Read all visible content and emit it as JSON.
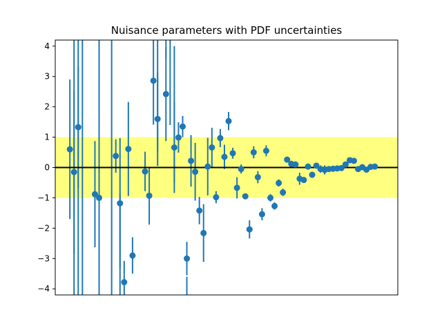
{
  "chart_data": {
    "type": "scatter",
    "title": "Nuisance parameters with PDF uncertainties",
    "xlabel": "",
    "ylabel": "",
    "xlim": [
      -0.5,
      81.5
    ],
    "ylim": [
      -4.2,
      4.2
    ],
    "yticks": [
      -4,
      -3,
      -2,
      -1,
      0,
      1,
      2,
      3,
      4
    ],
    "show_xticks": false,
    "grid": false,
    "legend": "none",
    "band": {
      "from": -1,
      "to": 1,
      "color": "#ffff80"
    },
    "reference_line": {
      "y": 0,
      "color": "#000000"
    },
    "marker_color": "#1f77b4",
    "series": [
      {
        "x": [
          0,
          1,
          2,
          3,
          4,
          5,
          6,
          7,
          8,
          9,
          10,
          11,
          12,
          13,
          14,
          15,
          16,
          17,
          18,
          19,
          20,
          21,
          22,
          23,
          24,
          25,
          26,
          27,
          28,
          29,
          30,
          31,
          32,
          33,
          34,
          35,
          36,
          37,
          38,
          39,
          40,
          41,
          42,
          43,
          44,
          45,
          46,
          47,
          48,
          49,
          50,
          51,
          52,
          53,
          54,
          55,
          56,
          57,
          58,
          59,
          60,
          61,
          62,
          63,
          64,
          65,
          66,
          67,
          68,
          69,
          70,
          71,
          72,
          73,
          74,
          75,
          76,
          77,
          78,
          79,
          80,
          81
        ],
        "y": [
          null,
          null,
          null,
          0.6,
          -0.15,
          1.33,
          null,
          null,
          null,
          -0.88,
          -1.0,
          null,
          null,
          null,
          0.38,
          -1.18,
          -3.78,
          0.61,
          -2.9,
          null,
          null,
          -0.13,
          -0.93,
          2.86,
          1.6,
          null,
          2.42,
          null,
          0.66,
          0.99,
          1.35,
          -3.0,
          0.22,
          -0.14,
          -1.42,
          -2.16,
          0.03,
          0.66,
          -0.98,
          0.97,
          0.35,
          1.53,
          0.47,
          -0.67,
          -0.05,
          -0.95,
          -2.04,
          0.5,
          -0.32,
          -1.54,
          0.55,
          -1.0,
          -1.27,
          -0.51,
          -0.82,
          0.26,
          0.12,
          0.1,
          -0.37,
          -0.41,
          0.03,
          -0.24,
          0.06,
          -0.05,
          -0.08,
          -0.05,
          -0.04,
          -0.03,
          -0.02,
          0.1,
          0.24,
          0.22,
          -0.05,
          0.01,
          -0.07,
          0.02,
          0.03,
          null,
          null,
          null,
          null,
          null
        ],
        "err": [
          null,
          null,
          null,
          2.3,
          2.7,
          2.0,
          null,
          null,
          null,
          1.75,
          4.0,
          null,
          null,
          null,
          0.55,
          2.15,
          0.7,
          1.55,
          0.6,
          null,
          null,
          0.65,
          0.95,
          1.45,
          1.55,
          null,
          1.55,
          null,
          1.5,
          0.5,
          0.35,
          0.55,
          0.85,
          0.95,
          0.45,
          0.95,
          0.95,
          0.65,
          0.2,
          0.3,
          0.4,
          0.3,
          0.18,
          0.35,
          0.15,
          0.08,
          0.3,
          0.2,
          0.2,
          0.2,
          0.18,
          0.12,
          0.12,
          0.12,
          0.12,
          0.06,
          0.1,
          0.1,
          0.2,
          0.1,
          0.05,
          0.1,
          0.05,
          0.12,
          0.15,
          0.08,
          0.05,
          0.05,
          0.05,
          0.05,
          0.05,
          0.05,
          0.05,
          0.05,
          0.05,
          0.05,
          0.05,
          null,
          null,
          null,
          null,
          null
        ]
      }
    ],
    "offscale_errorbars": [
      {
        "x": 4,
        "from": -5,
        "to": 5
      },
      {
        "x": 5,
        "from": -5,
        "to": 5
      },
      {
        "x": 6,
        "from": -5,
        "to": 5
      },
      {
        "x": 10,
        "from": 1.7,
        "to": 5
      },
      {
        "x": 13,
        "from": -5,
        "to": 5
      },
      {
        "x": 15,
        "from": -5,
        "to": -0.85
      },
      {
        "x": 24,
        "from": 0.5,
        "to": 5
      },
      {
        "x": 26,
        "from": 3.6,
        "to": 5
      },
      {
        "x": 27,
        "from": 1.4,
        "to": 5
      },
      {
        "x": 28,
        "from": -0.5,
        "to": 4.0
      },
      {
        "x": 31,
        "from": -5,
        "to": -3.6
      }
    ]
  }
}
